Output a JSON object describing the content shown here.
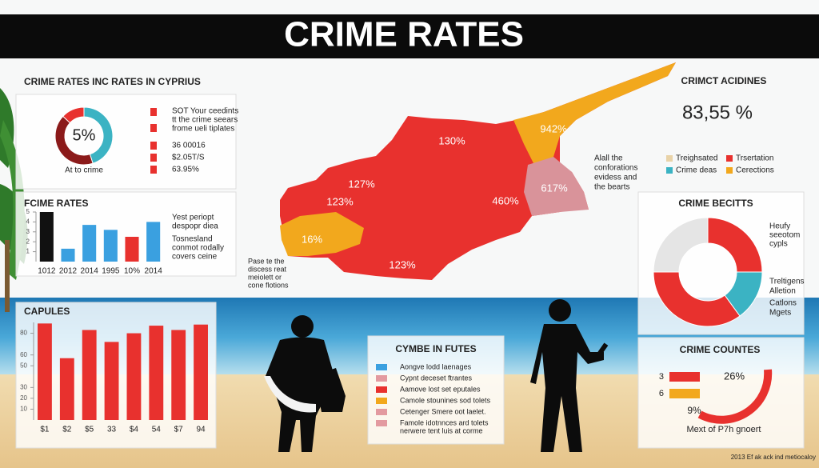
{
  "header": {
    "title": "CRIME RATES"
  },
  "summary_panel": {
    "title": "CRIME RATES INC RATES IN CYPRIUS",
    "caption": "At to crime",
    "lines": [
      "SOT Your ceedints",
      "tt the crime seears",
      "frome ueli tiplates",
      "36 00016",
      "$2.05T/S",
      "63.95%"
    ]
  },
  "fcime_panel": {
    "title": "FCIME RATES",
    "lines": [
      "Yest periopt",
      "despopr diea",
      "Tosnesland",
      "conmot rodally",
      "covers ceine"
    ]
  },
  "capules_panel": {
    "title": "CAPULES"
  },
  "map": {
    "labels": [
      "130%",
      "942%",
      "127%",
      "123%",
      "460%",
      "617%",
      "16%",
      "123%"
    ],
    "note_right": [
      "Alall the",
      "conforations",
      "evidess and",
      "the bearts"
    ],
    "note_left": [
      "Pase te the",
      "discess reat",
      "meiolett or",
      "cone flotions"
    ]
  },
  "incidents_panel": {
    "title": "CRIMCT ACIDINES",
    "big_value": "83,55 %",
    "legend": [
      {
        "name": "Treighsated",
        "color": "#e9d3a8"
      },
      {
        "name": "Trsertation",
        "color": "#e8312e"
      },
      {
        "name": "Crime deas",
        "color": "#3bb3c3"
      },
      {
        "name": "Cerections",
        "color": "#f2a81d"
      }
    ]
  },
  "becitts_panel": {
    "title": "CRIME BECITTS",
    "labels_top": [
      "Heufy",
      "seeotom",
      "cypls"
    ],
    "labels_bottom": [
      "Treltigens",
      "Alletion",
      "Catlons",
      "Mgets"
    ]
  },
  "futes_panel": {
    "title": "CYMBE IN FUTES",
    "items": [
      {
        "name": "Aongve lodd laenages",
        "color": "#3aa0e0"
      },
      {
        "name": "Cypnt deceset ftrantes",
        "color": "#e39aa0"
      },
      {
        "name": "Aamove lost set eputales",
        "color": "#e8312e"
      },
      {
        "name": "Camole stounines sod tolets",
        "color": "#f2a81d"
      },
      {
        "name": "Cetenger Smere oot laelet.",
        "color": "#e39aa0"
      },
      {
        "name": "Famole idotnnces ard tolets",
        "color": "#e39aa0"
      }
    ],
    "extra_line": "nerwere tent luis at corme"
  },
  "counts_panel": {
    "title": "CRIME COUNTES",
    "rows": [
      {
        "label": "3",
        "color": "#e8312e"
      },
      {
        "label": "6",
        "color": "#f2a81d"
      }
    ],
    "pct_top": "26%",
    "pct_bottom": "9%",
    "caption": "Mext of P7h gnoert"
  },
  "footer": "2013 Ef ak ack ind metiocaloy",
  "chart_data": [
    {
      "type": "donut",
      "label": "5%",
      "values": [
        45,
        42,
        13
      ],
      "colors": [
        "#3bb3c3",
        "#8b1a1a",
        "#e8312e"
      ]
    },
    {
      "type": "bar",
      "categories": [
        "1012",
        "2012",
        "2014",
        "1995",
        "10%",
        "2014"
      ],
      "values": [
        5,
        1.3,
        3.7,
        3.2,
        2.5,
        4.0
      ],
      "colors": [
        "#111111",
        "#3aa0e0",
        "#3aa0e0",
        "#3aa0e0",
        "#e8312e",
        "#3aa0e0"
      ],
      "ylim": [
        0,
        5
      ],
      "yticks": [
        1,
        2,
        3,
        4,
        5
      ]
    },
    {
      "type": "bar",
      "categories": [
        "$1",
        "$2",
        "$5",
        "33",
        "$4",
        "54",
        "$7",
        "94"
      ],
      "values": [
        89,
        57,
        83,
        72,
        80,
        87,
        83,
        88
      ],
      "colors": [
        "#e8312e",
        "#e8312e",
        "#e8312e",
        "#e8312e",
        "#e8312e",
        "#e8312e",
        "#e8312e",
        "#e8312e"
      ],
      "ylim": [
        0,
        90
      ],
      "yticks": [
        10,
        20,
        30,
        50,
        60,
        80
      ]
    },
    {
      "type": "donut",
      "values": [
        25,
        15,
        35,
        25
      ],
      "colors": [
        "#e8312e",
        "#3bb3c3",
        "#e8312e",
        "#e5e5e5"
      ]
    }
  ]
}
